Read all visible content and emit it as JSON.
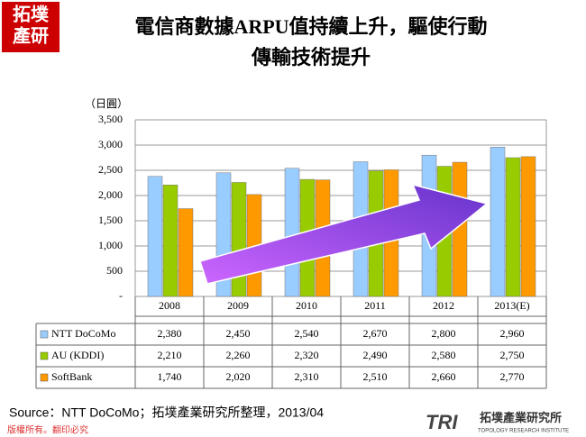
{
  "header": {
    "logo": [
      "拓墣",
      "產研"
    ],
    "title_lines": [
      "電信商數據ARPU值持續上升，驅使行動",
      "傳輸技術提升"
    ]
  },
  "chart_data": {
    "type": "bar",
    "y_unit": "（日圓）",
    "categories": [
      "2008",
      "2009",
      "2010",
      "2011",
      "2012",
      "2013(E)"
    ],
    "series": [
      {
        "name": "NTT DoCoMo",
        "color": "#99ccff",
        "values": [
          2380,
          2450,
          2540,
          2670,
          2800,
          2960
        ],
        "value_labels": [
          "2,380",
          "2,450",
          "2,540",
          "2,670",
          "2,800",
          "2,960"
        ]
      },
      {
        "name": "AU (KDDI)",
        "color": "#99cc00",
        "values": [
          2210,
          2260,
          2320,
          2490,
          2580,
          2750
        ],
        "value_labels": [
          "2,210",
          "2,260",
          "2,320",
          "2,490",
          "2,580",
          "2,750"
        ]
      },
      {
        "name": "SoftBank",
        "color": "#ff9900",
        "values": [
          1740,
          2020,
          2310,
          2510,
          2660,
          2770
        ],
        "value_labels": [
          "1,740",
          "2,020",
          "2,310",
          "2,510",
          "2,660",
          "2,770"
        ]
      }
    ],
    "ylim": [
      0,
      3500
    ],
    "yticks": [
      {
        "value": 0,
        "label": "-"
      },
      500,
      {
        "value": 1000,
        "label": "1,000"
      },
      {
        "value": 1500,
        "label": "1,500"
      },
      {
        "value": 2000,
        "label": "2,000"
      },
      {
        "value": 2500,
        "label": "2,500"
      },
      {
        "value": 3000,
        "label": "3,000"
      },
      {
        "value": 3500,
        "label": "3,500"
      }
    ],
    "grid": true
  },
  "footer": {
    "source": "Source：NTT DoCoMo；拓墣產業研究所整理，2013/04",
    "copyright": "版權所有。翻印必究",
    "brand": "TRI",
    "brand_name": "拓墣產業研究所",
    "brand_en": "TOPOLOGY RESEARCH INSTITUTE"
  }
}
